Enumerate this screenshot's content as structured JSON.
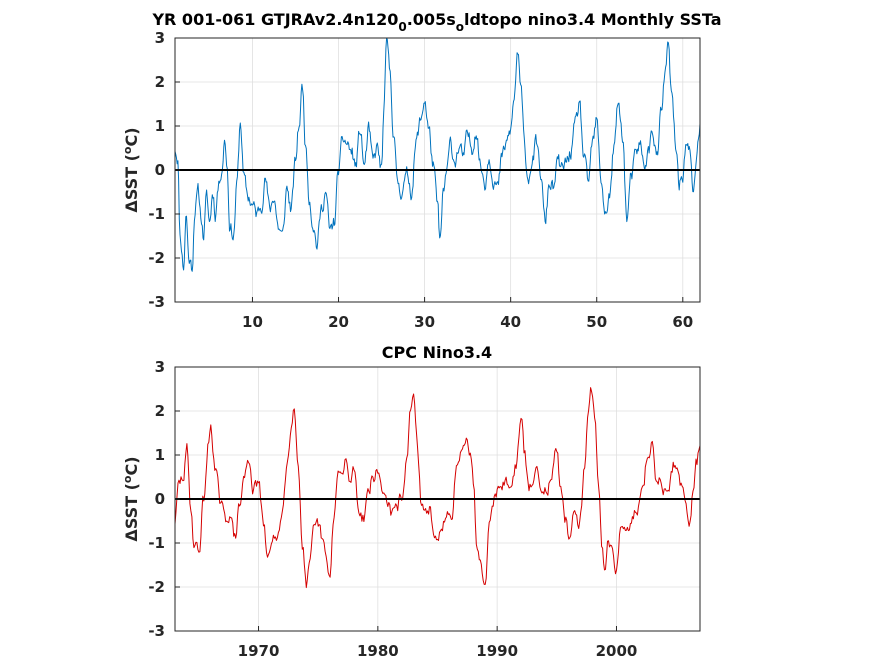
{
  "chart_data": [
    {
      "type": "line",
      "title_parts": [
        "YR 001-061 GTJRAv2.4n120",
        "0",
        ".005s",
        "o",
        "ldtopo nino3.4 Monthly SSTa"
      ],
      "ylabel_parts": [
        "ΔSST (",
        "o",
        "C)"
      ],
      "xlim": [
        1,
        62
      ],
      "ylim": [
        -3,
        3
      ],
      "xticks": [
        10,
        20,
        30,
        40,
        50,
        60
      ],
      "yticks": [
        -3,
        -2,
        -1,
        0,
        1,
        2,
        3
      ],
      "grid": true,
      "zero_line": true,
      "color": "#0072bd",
      "months_per_unit": 12,
      "x_start": 1,
      "anchors": [
        [
          1.0,
          0.5
        ],
        [
          1.3,
          0.3
        ],
        [
          1.6,
          -1.5
        ],
        [
          2.0,
          -2.2
        ],
        [
          2.3,
          -1.0
        ],
        [
          2.6,
          -2.0
        ],
        [
          3.0,
          -2.2
        ],
        [
          3.3,
          -0.9
        ],
        [
          3.7,
          -0.5
        ],
        [
          4.0,
          -1.0
        ],
        [
          4.3,
          -1.5
        ],
        [
          4.7,
          -0.6
        ],
        [
          5.0,
          -1.2
        ],
        [
          5.4,
          -0.5
        ],
        [
          5.7,
          -1.0
        ],
        [
          6.0,
          -0.4
        ],
        [
          6.4,
          0.0
        ],
        [
          6.8,
          0.7
        ],
        [
          7.0,
          0.2
        ],
        [
          7.4,
          -1.3
        ],
        [
          7.8,
          -1.5
        ],
        [
          8.2,
          -0.3
        ],
        [
          8.6,
          1.1
        ],
        [
          9.0,
          -0.2
        ],
        [
          9.5,
          -0.6
        ],
        [
          10.0,
          -0.8
        ],
        [
          10.5,
          -1.0
        ],
        [
          11.0,
          -0.8
        ],
        [
          11.5,
          -0.2
        ],
        [
          12.0,
          -0.9
        ],
        [
          12.5,
          -0.6
        ],
        [
          13.0,
          -1.3
        ],
        [
          13.5,
          -1.5
        ],
        [
          14.0,
          -0.4
        ],
        [
          14.5,
          -0.9
        ],
        [
          15.0,
          0.2
        ],
        [
          15.4,
          1.0
        ],
        [
          15.8,
          1.9
        ],
        [
          16.2,
          0.5
        ],
        [
          16.6,
          -0.6
        ],
        [
          17.0,
          -1.2
        ],
        [
          17.5,
          -1.7
        ],
        [
          18.0,
          -0.9
        ],
        [
          18.5,
          -0.5
        ],
        [
          19.0,
          -1.4
        ],
        [
          19.5,
          -1.2
        ],
        [
          20.0,
          0.0
        ],
        [
          20.5,
          0.7
        ],
        [
          21.0,
          0.6
        ],
        [
          21.5,
          0.4
        ],
        [
          22.0,
          0.1
        ],
        [
          22.5,
          0.9
        ],
        [
          23.0,
          0.1
        ],
        [
          23.5,
          0.9
        ],
        [
          24.0,
          0.2
        ],
        [
          24.5,
          0.5
        ],
        [
          25.0,
          0.0
        ],
        [
          25.3,
          1.5
        ],
        [
          25.6,
          2.9
        ],
        [
          26.0,
          2.2
        ],
        [
          26.4,
          0.8
        ],
        [
          26.8,
          -0.2
        ],
        [
          27.2,
          -0.5
        ],
        [
          27.6,
          -0.3
        ],
        [
          28.0,
          -0.1
        ],
        [
          28.5,
          -0.5
        ],
        [
          29.0,
          0.6
        ],
        [
          29.5,
          1.1
        ],
        [
          30.0,
          1.6
        ],
        [
          30.5,
          0.9
        ],
        [
          31.0,
          0.1
        ],
        [
          31.5,
          -0.8
        ],
        [
          31.8,
          -1.6
        ],
        [
          32.2,
          -0.5
        ],
        [
          32.6,
          0.0
        ],
        [
          33.0,
          0.6
        ],
        [
          33.5,
          0.2
        ],
        [
          34.0,
          0.5
        ],
        [
          34.5,
          0.3
        ],
        [
          35.0,
          0.8
        ],
        [
          35.5,
          0.5
        ],
        [
          36.0,
          0.9
        ],
        [
          36.5,
          0.1
        ],
        [
          37.0,
          -0.3
        ],
        [
          37.5,
          0.3
        ],
        [
          38.0,
          -0.2
        ],
        [
          38.5,
          -0.4
        ],
        [
          39.0,
          0.3
        ],
        [
          39.5,
          0.6
        ],
        [
          40.0,
          0.9
        ],
        [
          40.4,
          1.6
        ],
        [
          40.8,
          2.7
        ],
        [
          41.2,
          1.8
        ],
        [
          41.6,
          0.6
        ],
        [
          42.0,
          -0.2
        ],
        [
          42.5,
          0.2
        ],
        [
          43.0,
          0.6
        ],
        [
          43.5,
          -0.1
        ],
        [
          44.0,
          -1.2
        ],
        [
          44.5,
          -0.3
        ],
        [
          45.0,
          -0.4
        ],
        [
          45.5,
          0.2
        ],
        [
          46.0,
          0.0
        ],
        [
          46.5,
          0.2
        ],
        [
          47.0,
          0.4
        ],
        [
          47.5,
          1.0
        ],
        [
          48.0,
          1.5
        ],
        [
          48.5,
          0.3
        ],
        [
          49.0,
          -0.3
        ],
        [
          49.5,
          0.6
        ],
        [
          50.0,
          1.1
        ],
        [
          50.5,
          -0.2
        ],
        [
          51.0,
          -1.0
        ],
        [
          51.5,
          -0.6
        ],
        [
          52.0,
          0.5
        ],
        [
          52.5,
          1.5
        ],
        [
          53.0,
          0.8
        ],
        [
          53.5,
          -1.1
        ],
        [
          54.0,
          -0.2
        ],
        [
          54.5,
          0.3
        ],
        [
          55.0,
          0.6
        ],
        [
          55.5,
          0.1
        ],
        [
          56.0,
          0.4
        ],
        [
          56.5,
          0.9
        ],
        [
          57.0,
          0.3
        ],
        [
          57.5,
          1.3
        ],
        [
          58.0,
          2.3
        ],
        [
          58.3,
          2.8
        ],
        [
          58.7,
          1.7
        ],
        [
          59.2,
          0.5
        ],
        [
          59.6,
          -0.3
        ],
        [
          60.0,
          -0.1
        ],
        [
          60.4,
          0.6
        ],
        [
          60.8,
          0.4
        ],
        [
          61.2,
          -0.5
        ],
        [
          61.6,
          0.3
        ],
        [
          62.0,
          1.0
        ]
      ]
    },
    {
      "type": "line",
      "title": "CPC Nino3.4",
      "ylabel_parts": [
        "ΔSST (",
        "o",
        "C)"
      ],
      "xlim": [
        1963,
        2007
      ],
      "ylim": [
        -3,
        3
      ],
      "xticks": [
        1970,
        1980,
        1990,
        2000
      ],
      "yticks": [
        -3,
        -2,
        -1,
        0,
        1,
        2,
        3
      ],
      "grid": true,
      "zero_line": true,
      "color": "#d40000",
      "months_per_unit": 12,
      "x_start": 1963,
      "anchors": [
        [
          1963.0,
          -0.5
        ],
        [
          1963.3,
          0.3
        ],
        [
          1963.7,
          0.5
        ],
        [
          1964.0,
          1.1
        ],
        [
          1964.3,
          -0.1
        ],
        [
          1964.6,
          -1.0
        ],
        [
          1965.0,
          -1.2
        ],
        [
          1965.4,
          0.0
        ],
        [
          1965.8,
          1.2
        ],
        [
          1966.0,
          1.7
        ],
        [
          1966.4,
          0.6
        ],
        [
          1966.8,
          -0.1
        ],
        [
          1967.2,
          -0.5
        ],
        [
          1967.6,
          -0.3
        ],
        [
          1968.0,
          -0.9
        ],
        [
          1968.4,
          -0.2
        ],
        [
          1968.8,
          0.5
        ],
        [
          1969.2,
          0.9
        ],
        [
          1969.6,
          0.2
        ],
        [
          1970.0,
          0.4
        ],
        [
          1970.4,
          -0.6
        ],
        [
          1970.8,
          -1.4
        ],
        [
          1971.2,
          -0.8
        ],
        [
          1971.6,
          -1.0
        ],
        [
          1972.0,
          -0.2
        ],
        [
          1972.4,
          0.8
        ],
        [
          1972.8,
          1.9
        ],
        [
          1973.0,
          2.2
        ],
        [
          1973.3,
          0.8
        ],
        [
          1973.7,
          -1.0
        ],
        [
          1974.0,
          -2.0
        ],
        [
          1974.3,
          -1.6
        ],
        [
          1974.6,
          -0.8
        ],
        [
          1975.0,
          -0.6
        ],
        [
          1975.4,
          -1.0
        ],
        [
          1975.8,
          -1.6
        ],
        [
          1976.0,
          -1.8
        ],
        [
          1976.3,
          -0.4
        ],
        [
          1976.7,
          0.6
        ],
        [
          1977.0,
          0.5
        ],
        [
          1977.3,
          0.8
        ],
        [
          1977.7,
          0.4
        ],
        [
          1978.0,
          0.7
        ],
        [
          1978.4,
          -0.2
        ],
        [
          1978.8,
          -0.4
        ],
        [
          1979.2,
          0.2
        ],
        [
          1979.6,
          0.5
        ],
        [
          1980.0,
          0.6
        ],
        [
          1980.4,
          0.2
        ],
        [
          1980.8,
          0.0
        ],
        [
          1981.2,
          -0.4
        ],
        [
          1981.6,
          -0.2
        ],
        [
          1982.0,
          0.1
        ],
        [
          1982.4,
          0.8
        ],
        [
          1982.8,
          2.1
        ],
        [
          1983.0,
          2.3
        ],
        [
          1983.3,
          1.2
        ],
        [
          1983.7,
          -0.2
        ],
        [
          1984.0,
          -0.3
        ],
        [
          1984.3,
          -0.2
        ],
        [
          1984.7,
          -0.9
        ],
        [
          1985.0,
          -1.1
        ],
        [
          1985.4,
          -0.5
        ],
        [
          1985.8,
          -0.4
        ],
        [
          1986.2,
          -0.6
        ],
        [
          1986.6,
          0.8
        ],
        [
          1987.0,
          1.2
        ],
        [
          1987.4,
          1.5
        ],
        [
          1987.8,
          1.0
        ],
        [
          1988.0,
          0.4
        ],
        [
          1988.3,
          -1.0
        ],
        [
          1988.6,
          -1.4
        ],
        [
          1989.0,
          -1.8
        ],
        [
          1989.3,
          -0.6
        ],
        [
          1989.7,
          0.0
        ],
        [
          1990.0,
          0.2
        ],
        [
          1990.4,
          0.3
        ],
        [
          1990.8,
          0.4
        ],
        [
          1991.2,
          0.3
        ],
        [
          1991.6,
          0.8
        ],
        [
          1992.0,
          1.8
        ],
        [
          1992.3,
          1.0
        ],
        [
          1992.7,
          0.2
        ],
        [
          1993.0,
          0.4
        ],
        [
          1993.4,
          0.7
        ],
        [
          1993.8,
          0.2
        ],
        [
          1994.2,
          0.3
        ],
        [
          1994.6,
          0.6
        ],
        [
          1995.0,
          1.1
        ],
        [
          1995.3,
          0.1
        ],
        [
          1995.7,
          -0.5
        ],
        [
          1996.0,
          -0.8
        ],
        [
          1996.4,
          -0.4
        ],
        [
          1996.8,
          -0.6
        ],
        [
          1997.0,
          -0.4
        ],
        [
          1997.3,
          0.6
        ],
        [
          1997.6,
          2.0
        ],
        [
          1997.9,
          2.5
        ],
        [
          1998.2,
          1.9
        ],
        [
          1998.5,
          0.2
        ],
        [
          1998.8,
          -1.2
        ],
        [
          1999.0,
          -1.5
        ],
        [
          1999.3,
          -1.0
        ],
        [
          1999.7,
          -1.3
        ],
        [
          2000.0,
          -1.6
        ],
        [
          2000.3,
          -0.8
        ],
        [
          2000.7,
          -0.6
        ],
        [
          2001.0,
          -0.8
        ],
        [
          2001.4,
          -0.3
        ],
        [
          2001.8,
          -0.2
        ],
        [
          2002.2,
          0.1
        ],
        [
          2002.6,
          1.0
        ],
        [
          2003.0,
          1.3
        ],
        [
          2003.3,
          0.3
        ],
        [
          2003.7,
          0.5
        ],
        [
          2004.0,
          0.2
        ],
        [
          2004.4,
          0.4
        ],
        [
          2004.8,
          0.8
        ],
        [
          2005.1,
          0.6
        ],
        [
          2005.5,
          0.2
        ],
        [
          2005.8,
          -0.3
        ],
        [
          2006.1,
          -0.8
        ],
        [
          2006.4,
          0.1
        ],
        [
          2006.7,
          0.8
        ],
        [
          2007.0,
          1.3
        ]
      ]
    }
  ]
}
